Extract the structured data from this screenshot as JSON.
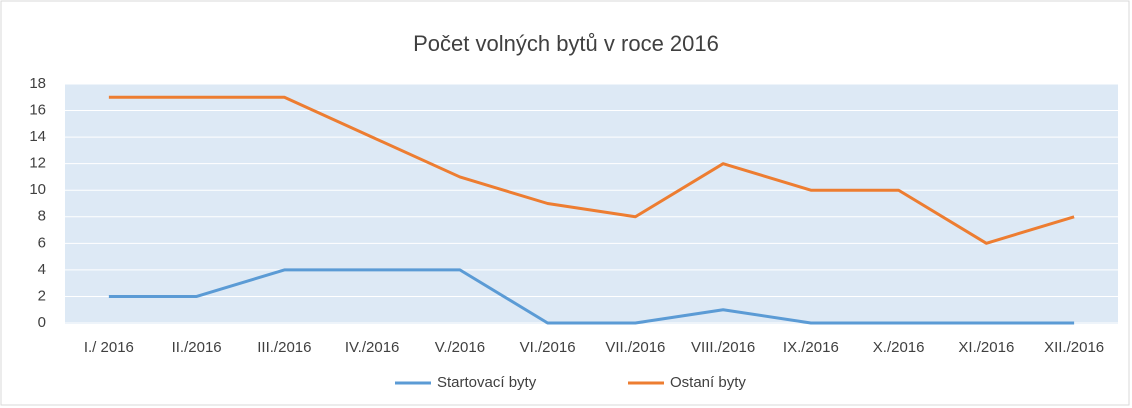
{
  "chart_data": {
    "type": "line",
    "title": "Počet volných bytů v roce 2016",
    "categories": [
      "I./ 2016",
      "II./2016",
      "III./2016",
      "IV./2016",
      "V./2016",
      "VI./2016",
      "VII./2016",
      "VIII./2016",
      "IX./2016",
      "X./2016",
      "XI./2016",
      "XII./2016"
    ],
    "series": [
      {
        "name": "Startovací byty",
        "color": "#5b9bd5",
        "values": [
          2,
          2,
          4,
          4,
          4,
          0,
          0,
          1,
          0,
          0,
          0,
          0
        ]
      },
      {
        "name": "Ostaní byty",
        "color": "#ed7d31",
        "values": [
          17,
          17,
          17,
          14,
          11,
          9,
          8,
          12,
          10,
          10,
          6,
          8
        ]
      }
    ],
    "ylim": [
      0,
      18
    ],
    "yticks": [
      0,
      2,
      4,
      6,
      8,
      10,
      12,
      14,
      16,
      18
    ],
    "grid": true,
    "legend": "bottom"
  }
}
